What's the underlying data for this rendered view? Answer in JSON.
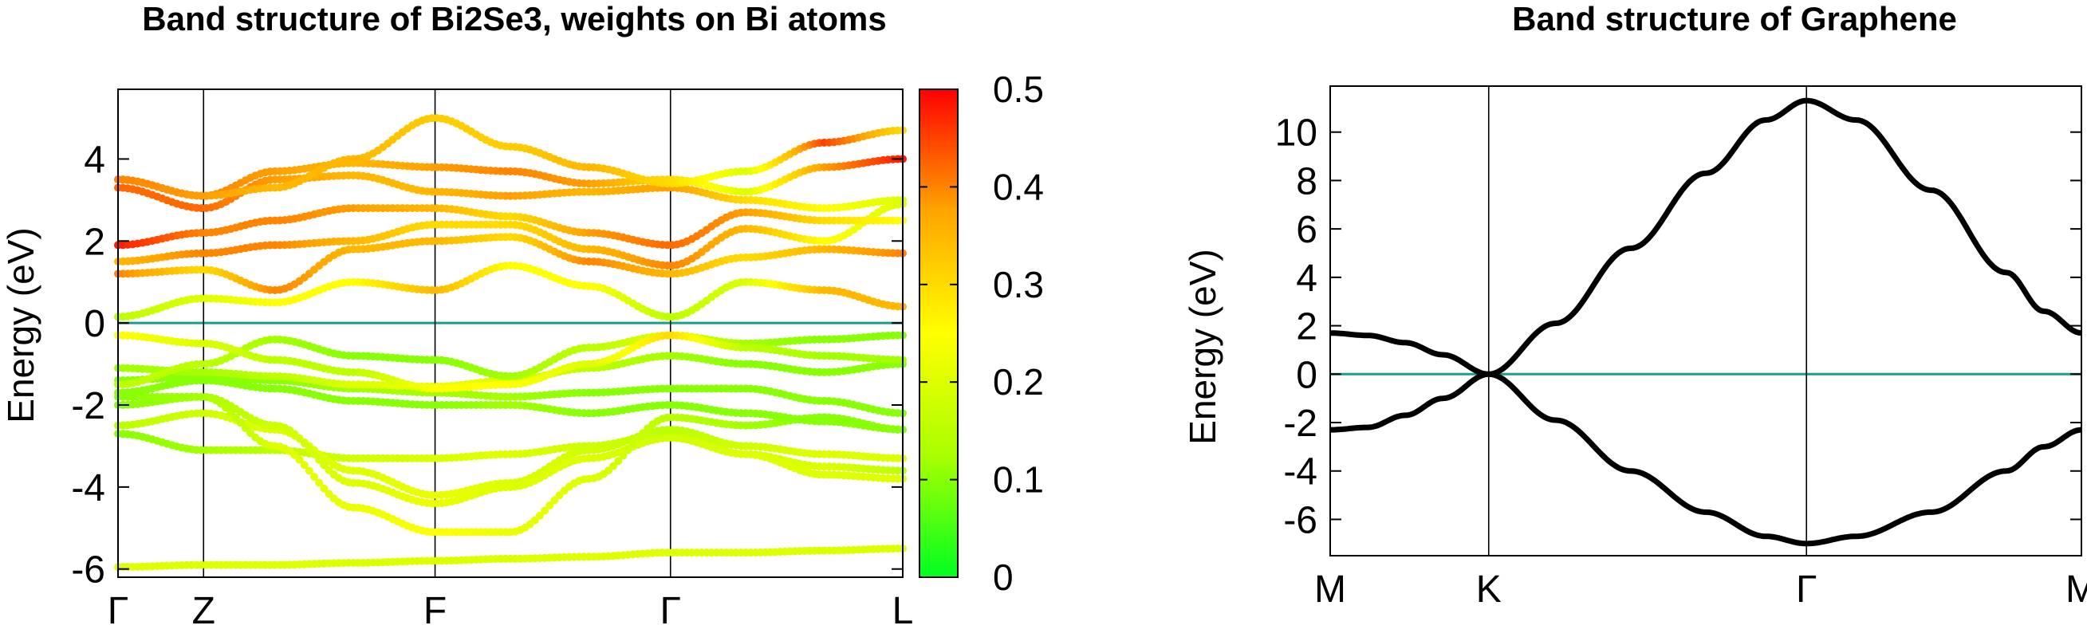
{
  "chart_data": [
    {
      "type": "scatter",
      "title": "Band structure of Bi2Se3, weights on Bi atoms",
      "ylabel": "Energy (eV)",
      "xlabel": "",
      "ylim": [
        -6.2,
        5.7
      ],
      "yticks": [
        -6,
        -4,
        -2,
        0,
        2,
        4
      ],
      "x_labels": [
        "Γ",
        "Z",
        "F",
        "Γ",
        "L"
      ],
      "x_positions": [
        0.0,
        0.109,
        0.404,
        0.704,
        1.0
      ],
      "fermi_level": 0,
      "fermi_color": "#1a9e8a",
      "colorbar": {
        "min": 0,
        "max": 0.5,
        "ticks": [
          "0",
          "0.1",
          "0.2",
          "0.3",
          "0.4",
          "0.5"
        ],
        "colors": [
          "#00ff22",
          "#aaff00",
          "#ffff00",
          "#ffa500",
          "#ff0000"
        ]
      },
      "bands": [
        {
          "k": [
            0,
            0.109,
            0.2,
            0.3,
            0.404,
            0.5,
            0.6,
            0.704,
            0.8,
            0.9,
            1.0
          ],
          "E": [
            -5.95,
            -5.9,
            -5.9,
            -5.85,
            -5.8,
            -5.75,
            -5.7,
            -5.6,
            -5.6,
            -5.55,
            -5.5
          ],
          "w": [
            0.2,
            0.2,
            0.2,
            0.2,
            0.2,
            0.2,
            0.2,
            0.2,
            0.2,
            0.2,
            0.2
          ],
          "dots": false
        },
        {
          "k": [
            0,
            0.109,
            0.2,
            0.3,
            0.404,
            0.5,
            0.6,
            0.704,
            0.8,
            0.9,
            1.0
          ],
          "E": [
            -2.7,
            -3.1,
            -3.1,
            -3.3,
            -3.3,
            -3.2,
            -3.0,
            -2.7,
            -3.2,
            -3.5,
            -3.6
          ],
          "w": [
            0.1,
            0.12,
            0.15,
            0.18,
            0.2,
            0.2,
            0.18,
            0.15,
            0.18,
            0.2,
            0.15
          ]
        },
        {
          "k": [
            0,
            0.109,
            0.2,
            0.3,
            0.404,
            0.5,
            0.6,
            0.704,
            0.8,
            0.9,
            1.0
          ],
          "E": [
            -2.5,
            -2.2,
            -2.6,
            -3.6,
            -4.2,
            -3.9,
            -3.1,
            -2.6,
            -3.0,
            -3.2,
            -3.3
          ],
          "w": [
            0.15,
            0.18,
            0.2,
            0.2,
            0.22,
            0.2,
            0.18,
            0.15,
            0.18,
            0.2,
            0.2
          ]
        },
        {
          "k": [
            0,
            0.109,
            0.2,
            0.3,
            0.404,
            0.5,
            0.6,
            0.704,
            0.8,
            0.9,
            1.0
          ],
          "E": [
            -2.0,
            -1.8,
            -2.5,
            -3.9,
            -4.4,
            -4.0,
            -3.3,
            -2.8,
            -3.2,
            -3.7,
            -3.8
          ],
          "w": [
            0.1,
            0.12,
            0.18,
            0.2,
            0.22,
            0.2,
            0.2,
            0.18,
            0.2,
            0.2,
            0.2
          ]
        },
        {
          "k": [
            0,
            0.109,
            0.2,
            0.3,
            0.404,
            0.5,
            0.6,
            0.704,
            0.8,
            0.9,
            1.0
          ],
          "E": [
            -1.8,
            -1.8,
            -3.0,
            -4.5,
            -5.1,
            -5.1,
            -3.8,
            -2.3,
            -2.5,
            -2.3,
            -2.6
          ],
          "w": [
            0.1,
            0.12,
            0.2,
            0.22,
            0.25,
            0.22,
            0.2,
            0.15,
            0.12,
            0.1,
            0.1
          ]
        },
        {
          "k": [
            0,
            0.109,
            0.2,
            0.3,
            0.404,
            0.5,
            0.6,
            0.704,
            0.8,
            0.9,
            1.0
          ],
          "E": [
            -1.7,
            -1.4,
            -1.6,
            -1.9,
            -2.0,
            -2.0,
            -2.2,
            -2.0,
            -2.2,
            -2.4,
            -2.6
          ],
          "w": [
            0.1,
            0.1,
            0.1,
            0.1,
            0.1,
            0.12,
            0.1,
            0.1,
            0.1,
            0.1,
            0.1
          ]
        },
        {
          "k": [
            0,
            0.109,
            0.2,
            0.3,
            0.404,
            0.5,
            0.6,
            0.704,
            0.8,
            0.9,
            1.0
          ],
          "E": [
            -1.4,
            -1.3,
            -1.4,
            -1.6,
            -1.7,
            -1.8,
            -1.7,
            -1.6,
            -1.6,
            -1.9,
            -2.2
          ],
          "w": [
            0.1,
            0.1,
            0.1,
            0.12,
            0.12,
            0.12,
            0.1,
            0.1,
            0.1,
            0.1,
            0.1
          ]
        },
        {
          "k": [
            0,
            0.109,
            0.2,
            0.3,
            0.404,
            0.5,
            0.6,
            0.704,
            0.8,
            0.9,
            1.0
          ],
          "E": [
            -1.1,
            -1.2,
            -1.3,
            -1.5,
            -1.55,
            -1.4,
            -1.1,
            -0.8,
            -1.0,
            -1.2,
            -1.0
          ],
          "w": [
            0.12,
            0.12,
            0.15,
            0.2,
            0.22,
            0.2,
            0.15,
            0.12,
            0.1,
            0.1,
            0.1
          ]
        },
        {
          "k": [
            0,
            0.109,
            0.2,
            0.3,
            0.404,
            0.5,
            0.6,
            0.704,
            0.8,
            0.9,
            1.0
          ],
          "E": [
            -1.5,
            -1.0,
            -0.4,
            -0.8,
            -0.9,
            -1.3,
            -0.6,
            -0.3,
            -0.5,
            -0.4,
            -0.3
          ],
          "w": [
            0.15,
            0.15,
            0.12,
            0.1,
            0.1,
            0.12,
            0.15,
            0.2,
            0.12,
            0.1,
            0.1
          ]
        },
        {
          "k": [
            0,
            0.109,
            0.2,
            0.3,
            0.404,
            0.5,
            0.6,
            0.704,
            0.8,
            0.9,
            1.0
          ],
          "E": [
            -0.3,
            -0.5,
            -0.9,
            -1.2,
            -1.6,
            -1.5,
            -1.0,
            -0.3,
            -0.6,
            -0.8,
            -0.9
          ],
          "w": [
            0.25,
            0.2,
            0.15,
            0.15,
            0.25,
            0.25,
            0.2,
            0.3,
            0.15,
            0.12,
            0.12
          ]
        },
        {
          "k": [
            0,
            0.109,
            0.2,
            0.3,
            0.404,
            0.5,
            0.6,
            0.704,
            0.8,
            0.9,
            1.0
          ],
          "E": [
            0.15,
            0.6,
            0.5,
            1.0,
            0.8,
            1.4,
            0.9,
            0.15,
            1.0,
            0.8,
            0.4
          ],
          "w": [
            0.15,
            0.2,
            0.25,
            0.25,
            0.35,
            0.25,
            0.25,
            0.15,
            0.2,
            0.35,
            0.35
          ]
        },
        {
          "k": [
            0,
            0.109,
            0.2,
            0.3,
            0.404,
            0.5,
            0.6,
            0.704,
            0.8,
            0.9,
            1.0
          ],
          "E": [
            1.2,
            1.3,
            0.8,
            1.8,
            2.0,
            2.1,
            1.5,
            1.2,
            1.6,
            1.8,
            1.7
          ],
          "w": [
            0.4,
            0.3,
            0.4,
            0.35,
            0.35,
            0.3,
            0.4,
            0.35,
            0.3,
            0.35,
            0.4
          ]
        },
        {
          "k": [
            0,
            0.109,
            0.2,
            0.3,
            0.404,
            0.5,
            0.6,
            0.704,
            0.8,
            0.9,
            1.0
          ],
          "E": [
            1.5,
            1.7,
            1.9,
            2.0,
            2.4,
            2.4,
            1.8,
            1.4,
            2.3,
            2.0,
            2.9
          ],
          "w": [
            0.35,
            0.4,
            0.4,
            0.35,
            0.3,
            0.3,
            0.35,
            0.4,
            0.35,
            0.25,
            0.2
          ]
        },
        {
          "k": [
            0,
            0.109,
            0.2,
            0.3,
            0.404,
            0.5,
            0.6,
            0.704,
            0.8,
            0.9,
            1.0
          ],
          "E": [
            1.9,
            2.2,
            2.5,
            2.8,
            2.8,
            2.6,
            2.2,
            1.9,
            2.7,
            2.5,
            2.5
          ],
          "w": [
            0.48,
            0.4,
            0.4,
            0.38,
            0.35,
            0.3,
            0.38,
            0.42,
            0.38,
            0.3,
            0.25
          ]
        },
        {
          "k": [
            0,
            0.109,
            0.2,
            0.3,
            0.404,
            0.5,
            0.6,
            0.704,
            0.8,
            0.9,
            1.0
          ],
          "E": [
            3.3,
            2.8,
            3.5,
            3.6,
            3.2,
            3.1,
            3.2,
            3.3,
            3.0,
            2.8,
            3.0
          ],
          "w": [
            0.42,
            0.42,
            0.38,
            0.35,
            0.35,
            0.38,
            0.35,
            0.38,
            0.3,
            0.25,
            0.2
          ]
        },
        {
          "k": [
            0,
            0.109,
            0.2,
            0.3,
            0.404,
            0.5,
            0.6,
            0.704,
            0.8,
            0.9,
            1.0
          ],
          "E": [
            3.5,
            3.1,
            3.7,
            3.9,
            3.8,
            3.7,
            3.4,
            3.5,
            3.2,
            3.8,
            4.0
          ],
          "w": [
            0.42,
            0.4,
            0.38,
            0.35,
            0.38,
            0.4,
            0.38,
            0.3,
            0.2,
            0.38,
            0.48
          ]
        },
        {
          "k": [
            0,
            0.109,
            0.2,
            0.3,
            0.404,
            0.5,
            0.6,
            0.704,
            0.8,
            0.9,
            1.0
          ],
          "E": [
            3.5,
            3.1,
            3.3,
            4.0,
            5.0,
            4.3,
            3.8,
            3.4,
            3.7,
            4.4,
            4.7
          ],
          "w": [
            0.4,
            0.38,
            0.35,
            0.35,
            0.32,
            0.32,
            0.35,
            0.3,
            0.2,
            0.45,
            0.3
          ]
        }
      ]
    },
    {
      "type": "line",
      "title": "Band structure of Graphene",
      "ylabel": "Energy (eV)",
      "xlabel": "",
      "ylim": [
        -7.5,
        11.9
      ],
      "yticks": [
        -6,
        -4,
        -2,
        0,
        2,
        4,
        6,
        8,
        10
      ],
      "x_labels": [
        "M",
        "K",
        "Γ",
        "M"
      ],
      "x_positions": [
        0.0,
        0.211,
        0.634,
        1.0
      ],
      "fermi_level": 0,
      "fermi_color": "#1a9e8a",
      "line_color": "#000000",
      "bands": [
        {
          "k": [
            0,
            0.05,
            0.1,
            0.15,
            0.211,
            0.3,
            0.4,
            0.5,
            0.58,
            0.634,
            0.7,
            0.8,
            0.9,
            0.95,
            1.0
          ],
          "E": [
            1.7,
            1.6,
            1.3,
            0.8,
            0.0,
            2.1,
            5.2,
            8.3,
            10.5,
            11.3,
            10.5,
            7.6,
            4.2,
            2.6,
            1.7
          ]
        },
        {
          "k": [
            0,
            0.05,
            0.1,
            0.15,
            0.211,
            0.3,
            0.4,
            0.5,
            0.58,
            0.634,
            0.7,
            0.8,
            0.9,
            0.95,
            1.0
          ],
          "E": [
            -2.3,
            -2.2,
            -1.7,
            -1.0,
            0.0,
            -1.9,
            -4.0,
            -5.7,
            -6.7,
            -7.0,
            -6.7,
            -5.7,
            -4.0,
            -3.0,
            -2.3
          ]
        }
      ]
    }
  ]
}
